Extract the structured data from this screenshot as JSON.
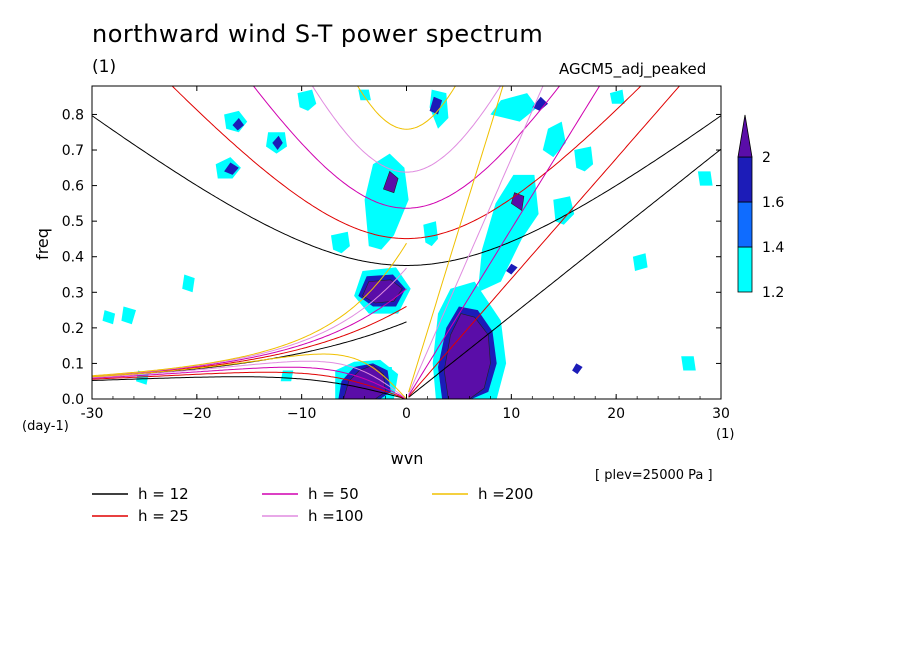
{
  "header": {
    "title": "northward wind S-T power spectrum",
    "units_top": "(1)",
    "model": "AGCM5_adj_peaked",
    "plev": "[ plev=25000 Pa ]"
  },
  "chart_data": {
    "type": "heatmap",
    "title": "northward wind S-T power spectrum",
    "xlabel": "wvn",
    "ylabel": "freq",
    "x_unit": "(1)",
    "y_unit": "(day-1)",
    "xlim": [
      -30,
      30
    ],
    "ylim": [
      0.0,
      0.88
    ],
    "x_ticks": [
      -30,
      -20,
      -10,
      0,
      10,
      20,
      30
    ],
    "x_tick_labels": [
      "-30",
      "−20",
      "−10",
      "0",
      "10",
      "20",
      "30"
    ],
    "y_ticks": [
      0.0,
      0.1,
      0.2,
      0.3,
      0.4,
      0.5,
      0.6,
      0.7,
      0.8
    ],
    "y_tick_labels": [
      "0.0",
      "0.1",
      "0.2",
      "0.3",
      "0.4",
      "0.5",
      "0.6",
      "0.7",
      "0.8"
    ],
    "colorbar": {
      "levels": [
        1.2,
        1.4,
        1.6,
        2
      ],
      "level_labels": [
        "1.2",
        "1.4",
        "1.6",
        "2"
      ],
      "colors": [
        "#00ffff",
        "#0f6cff",
        "#1c1cb8",
        "#5a0da8"
      ]
    },
    "dispersion_curves": [
      {
        "label": "h = 12",
        "h": 12,
        "color": "#000000"
      },
      {
        "label": "h = 25",
        "h": 25,
        "color": "#e00000"
      },
      {
        "label": "h = 50",
        "h": 50,
        "color": "#d000b0"
      },
      {
        "label": "h =100",
        "h": 100,
        "color": "#e08ce0"
      },
      {
        "label": "h =200",
        "h": 200,
        "color": "#f0c000"
      }
    ],
    "power_regions": [
      {
        "level": 2,
        "points": [
          [
            -6.0,
            0.0
          ],
          [
            -5.5,
            0.05
          ],
          [
            -4.5,
            0.08
          ],
          [
            -3.2,
            0.095
          ],
          [
            -2.2,
            0.07
          ],
          [
            -2.0,
            0.02
          ],
          [
            -3.0,
            0.0
          ]
        ]
      },
      {
        "level": 1.6,
        "points": [
          [
            -6.5,
            0.0
          ],
          [
            -6.2,
            0.05
          ],
          [
            -5.0,
            0.09
          ],
          [
            -3.2,
            0.1
          ],
          [
            -1.8,
            0.08
          ],
          [
            -1.5,
            0.02
          ],
          [
            -2.5,
            0.0
          ]
        ]
      },
      {
        "level": 2,
        "points": [
          [
            -4.2,
            0.29
          ],
          [
            -3.6,
            0.33
          ],
          [
            -1.5,
            0.335
          ],
          [
            -0.4,
            0.31
          ],
          [
            -1.2,
            0.275
          ],
          [
            -3.0,
            0.27
          ]
        ]
      },
      {
        "level": 1.6,
        "points": [
          [
            -4.6,
            0.29
          ],
          [
            -3.8,
            0.345
          ],
          [
            -1.3,
            0.35
          ],
          [
            -0.1,
            0.31
          ],
          [
            -1.0,
            0.26
          ],
          [
            -3.2,
            0.26
          ]
        ]
      },
      {
        "level": 2,
        "points": [
          [
            4.0,
            0.0
          ],
          [
            3.6,
            0.08
          ],
          [
            4.2,
            0.18
          ],
          [
            5.2,
            0.24
          ],
          [
            6.5,
            0.23
          ],
          [
            7.8,
            0.18
          ],
          [
            8.0,
            0.1
          ],
          [
            7.4,
            0.03
          ],
          [
            6.0,
            0.0
          ]
        ]
      },
      {
        "level": 1.6,
        "points": [
          [
            3.4,
            0.0
          ],
          [
            3.0,
            0.09
          ],
          [
            3.8,
            0.2
          ],
          [
            5.0,
            0.26
          ],
          [
            6.8,
            0.25
          ],
          [
            8.2,
            0.19
          ],
          [
            8.6,
            0.1
          ],
          [
            7.8,
            0.02
          ],
          [
            6.2,
            0.0
          ]
        ]
      },
      {
        "level": 2,
        "points": [
          [
            -2.2,
            0.59
          ],
          [
            -1.6,
            0.64
          ],
          [
            -0.8,
            0.62
          ],
          [
            -1.2,
            0.58
          ]
        ]
      },
      {
        "level": 2,
        "points": [
          [
            10.0,
            0.55
          ],
          [
            10.3,
            0.58
          ],
          [
            11.2,
            0.57
          ],
          [
            11.0,
            0.53
          ]
        ]
      },
      {
        "level": 1.6,
        "points": [
          [
            2.2,
            0.81
          ],
          [
            2.6,
            0.85
          ],
          [
            3.4,
            0.84
          ],
          [
            3.0,
            0.8
          ]
        ]
      },
      {
        "level": 1.6,
        "points": [
          [
            -17.4,
            0.64
          ],
          [
            -16.8,
            0.665
          ],
          [
            -16.0,
            0.65
          ],
          [
            -16.6,
            0.63
          ]
        ]
      },
      {
        "level": 1.6,
        "points": [
          [
            -12.8,
            0.72
          ],
          [
            -12.2,
            0.74
          ],
          [
            -11.8,
            0.72
          ],
          [
            -12.3,
            0.7
          ]
        ]
      },
      {
        "level": 1.6,
        "points": [
          [
            -16.6,
            0.77
          ],
          [
            -16.0,
            0.79
          ],
          [
            -15.5,
            0.77
          ],
          [
            -16.1,
            0.755
          ]
        ]
      },
      {
        "level": 1.6,
        "points": [
          [
            12.0,
            0.82
          ],
          [
            12.8,
            0.85
          ],
          [
            13.5,
            0.83
          ],
          [
            12.7,
            0.81
          ]
        ]
      },
      {
        "level": 1.6,
        "points": [
          [
            9.5,
            0.36
          ],
          [
            10.0,
            0.38
          ],
          [
            10.6,
            0.37
          ],
          [
            10.0,
            0.35
          ]
        ]
      },
      {
        "level": 1.6,
        "points": [
          [
            15.8,
            0.08
          ],
          [
            16.2,
            0.1
          ],
          [
            16.8,
            0.09
          ],
          [
            16.3,
            0.07
          ]
        ]
      },
      {
        "level": 1.2,
        "points": [
          [
            -6.8,
            0.0
          ],
          [
            -6.8,
            0.08
          ],
          [
            -5.0,
            0.105
          ],
          [
            -2.5,
            0.11
          ],
          [
            -0.8,
            0.07
          ],
          [
            -1.2,
            0.0
          ]
        ]
      },
      {
        "level": 1.2,
        "points": [
          [
            -5.0,
            0.29
          ],
          [
            -4.2,
            0.36
          ],
          [
            -1.0,
            0.37
          ],
          [
            0.4,
            0.31
          ],
          [
            -0.8,
            0.24
          ],
          [
            -3.6,
            0.24
          ]
        ]
      },
      {
        "level": 1.2,
        "points": [
          [
            2.8,
            0.0
          ],
          [
            2.5,
            0.1
          ],
          [
            3.0,
            0.24
          ],
          [
            4.2,
            0.31
          ],
          [
            6.5,
            0.33
          ],
          [
            9.0,
            0.22
          ],
          [
            9.5,
            0.1
          ],
          [
            8.6,
            0.0
          ]
        ]
      },
      {
        "level": 1.2,
        "points": [
          [
            -3.6,
            0.43
          ],
          [
            -4.0,
            0.56
          ],
          [
            -3.2,
            0.66
          ],
          [
            -1.6,
            0.69
          ],
          [
            -0.2,
            0.65
          ],
          [
            0.2,
            0.56
          ],
          [
            -1.2,
            0.46
          ],
          [
            -2.4,
            0.42
          ]
        ]
      },
      {
        "level": 1.2,
        "points": [
          [
            6.8,
            0.3
          ],
          [
            7.2,
            0.42
          ],
          [
            8.5,
            0.55
          ],
          [
            10.2,
            0.63
          ],
          [
            12.2,
            0.63
          ],
          [
            12.6,
            0.52
          ],
          [
            11.0,
            0.45
          ],
          [
            9.0,
            0.33
          ]
        ]
      },
      {
        "level": 1.2,
        "points": [
          [
            13.0,
            0.7
          ],
          [
            13.5,
            0.76
          ],
          [
            14.8,
            0.78
          ],
          [
            15.2,
            0.72
          ],
          [
            14.0,
            0.68
          ]
        ]
      },
      {
        "level": 1.2,
        "points": [
          [
            8.0,
            0.8
          ],
          [
            9.0,
            0.84
          ],
          [
            11.5,
            0.86
          ],
          [
            12.5,
            0.82
          ],
          [
            10.8,
            0.78
          ]
        ]
      },
      {
        "level": 1.2,
        "points": [
          [
            3.0,
            0.76
          ],
          [
            2.2,
            0.82
          ],
          [
            2.4,
            0.87
          ],
          [
            3.8,
            0.86
          ],
          [
            4.0,
            0.79
          ]
        ]
      },
      {
        "level": 1.2,
        "points": [
          [
            -2.6,
            0.02
          ],
          [
            -2.8,
            0.09
          ],
          [
            -1.4,
            0.09
          ],
          [
            -1.2,
            0.02
          ]
        ]
      },
      {
        "level": 1.2,
        "points": [
          [
            -18.0,
            0.62
          ],
          [
            -18.2,
            0.66
          ],
          [
            -16.8,
            0.68
          ],
          [
            -15.8,
            0.65
          ],
          [
            -16.6,
            0.62
          ]
        ]
      },
      {
        "level": 1.2,
        "points": [
          [
            -17.2,
            0.76
          ],
          [
            -17.4,
            0.8
          ],
          [
            -16.0,
            0.81
          ],
          [
            -15.2,
            0.78
          ],
          [
            -16.0,
            0.75
          ]
        ]
      },
      {
        "level": 1.2,
        "points": [
          [
            -13.4,
            0.71
          ],
          [
            -13.2,
            0.75
          ],
          [
            -11.6,
            0.75
          ],
          [
            -11.4,
            0.71
          ],
          [
            -12.4,
            0.69
          ]
        ]
      },
      {
        "level": 1.2,
        "points": [
          [
            -10.2,
            0.82
          ],
          [
            -10.4,
            0.86
          ],
          [
            -9.0,
            0.87
          ],
          [
            -8.6,
            0.83
          ],
          [
            -9.4,
            0.81
          ]
        ]
      },
      {
        "level": 1.2,
        "points": [
          [
            -7.0,
            0.42
          ],
          [
            -7.2,
            0.46
          ],
          [
            -5.6,
            0.47
          ],
          [
            -5.4,
            0.43
          ],
          [
            -6.2,
            0.41
          ]
        ]
      },
      {
        "level": 1.2,
        "points": [
          [
            1.8,
            0.44
          ],
          [
            1.6,
            0.49
          ],
          [
            2.8,
            0.5
          ],
          [
            3.0,
            0.45
          ],
          [
            2.4,
            0.43
          ]
        ]
      },
      {
        "level": 1.2,
        "points": [
          [
            14.2,
            0.5
          ],
          [
            14.0,
            0.56
          ],
          [
            15.6,
            0.57
          ],
          [
            16.0,
            0.52
          ],
          [
            15.0,
            0.49
          ]
        ]
      },
      {
        "level": 1.2,
        "points": [
          [
            16.2,
            0.65
          ],
          [
            16.0,
            0.7
          ],
          [
            17.6,
            0.71
          ],
          [
            17.8,
            0.66
          ],
          [
            17.0,
            0.64
          ]
        ]
      },
      {
        "level": 1.2,
        "points": [
          [
            -27.2,
            0.22
          ],
          [
            -27.0,
            0.26
          ],
          [
            -25.8,
            0.25
          ],
          [
            -26.2,
            0.21
          ]
        ]
      },
      {
        "level": 1.2,
        "points": [
          [
            -21.4,
            0.31
          ],
          [
            -21.2,
            0.35
          ],
          [
            -20.2,
            0.34
          ],
          [
            -20.4,
            0.3
          ]
        ]
      },
      {
        "level": 1.2,
        "points": [
          [
            -29.0,
            0.22
          ],
          [
            -28.8,
            0.25
          ],
          [
            -27.8,
            0.24
          ],
          [
            -28.0,
            0.21
          ]
        ]
      },
      {
        "level": 1.2,
        "points": [
          [
            -25.8,
            0.05
          ],
          [
            -25.6,
            0.08
          ],
          [
            -24.6,
            0.07
          ],
          [
            -24.8,
            0.04
          ]
        ]
      },
      {
        "level": 1.2,
        "points": [
          [
            21.8,
            0.36
          ],
          [
            21.6,
            0.4
          ],
          [
            22.8,
            0.41
          ],
          [
            23.0,
            0.37
          ]
        ]
      },
      {
        "level": 1.2,
        "points": [
          [
            26.4,
            0.08
          ],
          [
            26.2,
            0.12
          ],
          [
            27.4,
            0.12
          ],
          [
            27.6,
            0.08
          ]
        ]
      },
      {
        "level": 1.2,
        "points": [
          [
            28.0,
            0.6
          ],
          [
            27.8,
            0.64
          ],
          [
            29.0,
            0.64
          ],
          [
            29.2,
            0.6
          ]
        ]
      },
      {
        "level": 1.2,
        "points": [
          [
            19.6,
            0.83
          ],
          [
            19.4,
            0.86
          ],
          [
            20.6,
            0.87
          ],
          [
            20.8,
            0.83
          ]
        ]
      },
      {
        "level": 1.2,
        "points": [
          [
            -12.0,
            0.05
          ],
          [
            -11.8,
            0.08
          ],
          [
            -10.8,
            0.08
          ],
          [
            -11.0,
            0.05
          ]
        ]
      },
      {
        "level": 1.2,
        "points": [
          [
            -4.4,
            0.84
          ],
          [
            -4.6,
            0.87
          ],
          [
            -3.6,
            0.87
          ],
          [
            -3.4,
            0.84
          ]
        ]
      }
    ]
  }
}
